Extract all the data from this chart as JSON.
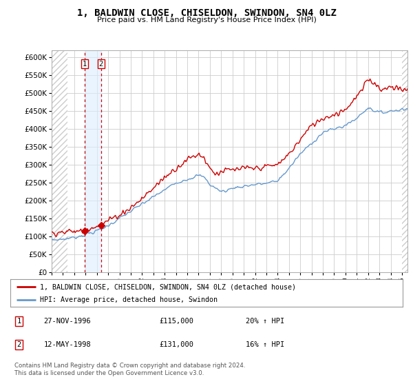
{
  "title": "1, BALDWIN CLOSE, CHISELDON, SWINDON, SN4 0LZ",
  "subtitle": "Price paid vs. HM Land Registry's House Price Index (HPI)",
  "ylim": [
    0,
    620000
  ],
  "yticks": [
    0,
    50000,
    100000,
    150000,
    200000,
    250000,
    300000,
    350000,
    400000,
    450000,
    500000,
    550000,
    600000
  ],
  "ytick_labels": [
    "£0",
    "£50K",
    "£100K",
    "£150K",
    "£200K",
    "£250K",
    "£300K",
    "£350K",
    "£400K",
    "£450K",
    "£500K",
    "£550K",
    "£600K"
  ],
  "xlim_start": 1994.0,
  "xlim_end": 2025.5,
  "sale1_date": 1996.91,
  "sale1_price": 115000,
  "sale1_label": "1",
  "sale2_date": 1998.36,
  "sale2_price": 131000,
  "sale2_label": "2",
  "hpi_color": "#6699cc",
  "price_color": "#cc0000",
  "vline_color": "#cc0000",
  "shade_color": "#ddeeff",
  "hatch_color": "#bbbbbb",
  "grid_color": "#cccccc",
  "legend_line1": "1, BALDWIN CLOSE, CHISELDON, SWINDON, SN4 0LZ (detached house)",
  "legend_line2": "HPI: Average price, detached house, Swindon",
  "table_row1": [
    "1",
    "27-NOV-1996",
    "£115,000",
    "20% ↑ HPI"
  ],
  "table_row2": [
    "2",
    "12-MAY-1998",
    "£131,000",
    "16% ↑ HPI"
  ],
  "footnote": "Contains HM Land Registry data © Crown copyright and database right 2024.\nThis data is licensed under the Open Government Licence v3.0.",
  "background_color": "#ffffff",
  "left_hatch_end": 1995.4,
  "right_hatch_start": 2025.0
}
